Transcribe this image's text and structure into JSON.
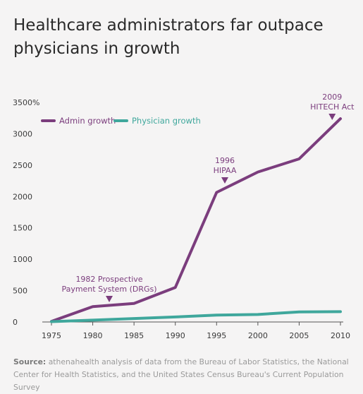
{
  "title_line1": "Healthcare administrators far outpace",
  "title_line2": "physicians in growth",
  "source_label": "Source:",
  "source_text": "athenahealth analysis of data from the Bureau of Labor Statistics, the National Center for Health Statistics, and the United States Census Bureau's Current Population Survey",
  "colors": {
    "admin": "#7b3d7d",
    "physician": "#3fa79c",
    "axis": "#555555"
  },
  "chart_data": {
    "type": "line",
    "title": "Healthcare administrators far outpace physicians in growth",
    "x": [
      1975,
      1980,
      1985,
      1990,
      1995,
      2000,
      2005,
      2010
    ],
    "xticks": [
      "1975",
      "1980",
      "1985",
      "1990",
      "1995",
      "2000",
      "2005",
      "2010"
    ],
    "yticks": [
      "0",
      "500",
      "1000",
      "1500",
      "2000",
      "2500",
      "3000",
      "3500%"
    ],
    "ylim": [
      0,
      3500
    ],
    "xlim": [
      1975,
      2010
    ],
    "legend_position": "top-left",
    "series": [
      {
        "name": "Admin growth",
        "x": [
          1975,
          1980,
          1985,
          1990,
          1995,
          2000,
          2005,
          2010
        ],
        "values": [
          10,
          245,
          295,
          550,
          2065,
          2390,
          2600,
          3240
        ]
      },
      {
        "name": "Physician growth",
        "x": [
          1975,
          1980,
          1985,
          1990,
          1995,
          2000,
          2005,
          2010
        ],
        "values": [
          5,
          30,
          55,
          80,
          110,
          120,
          160,
          165
        ]
      }
    ],
    "annotations": [
      {
        "lines": [
          "1982 Prospective",
          "Payment System (DRGs)"
        ],
        "x": 1982,
        "y": 300
      },
      {
        "lines": [
          "1996",
          "HIPAA"
        ],
        "x": 1996,
        "y": 2200
      },
      {
        "lines": [
          "2009",
          "HITECH Act"
        ],
        "x": 2009,
        "y": 3300
      }
    ]
  }
}
